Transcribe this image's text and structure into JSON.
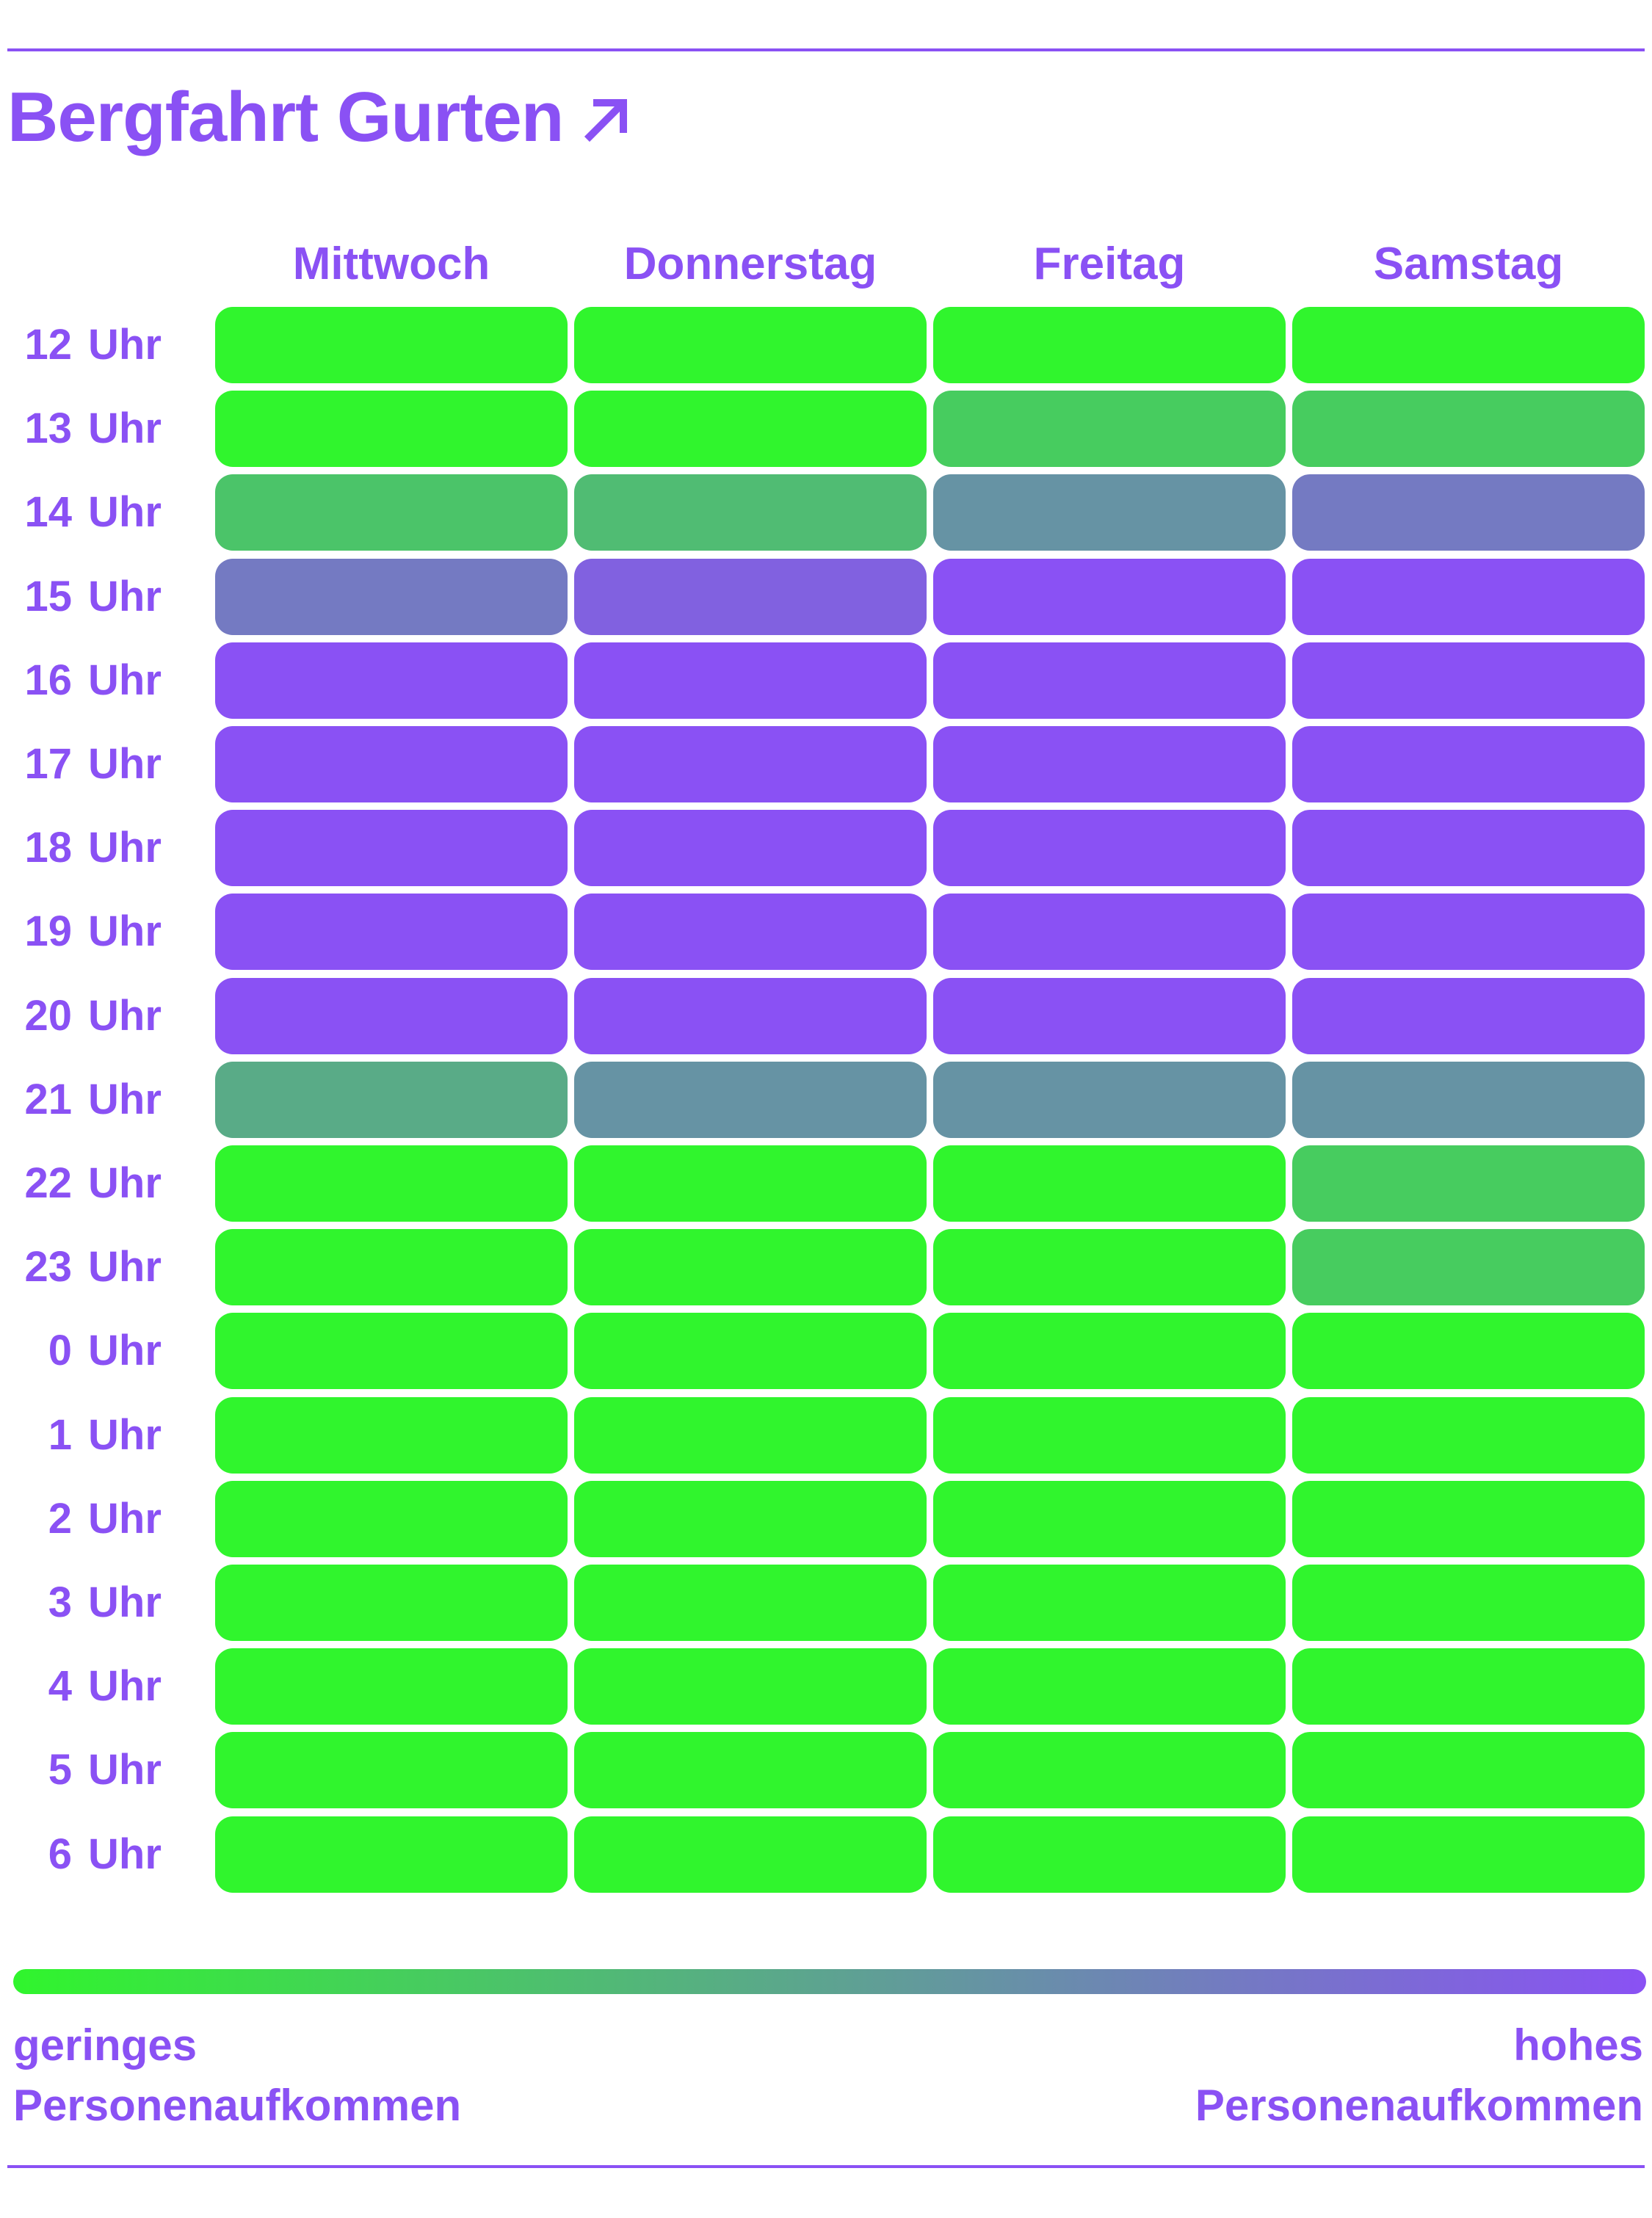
{
  "header": {
    "title": "Bergfahrt Gurten",
    "title_icon": "arrow-up-right-icon"
  },
  "colors": {
    "accent": "#8a51f4",
    "low": "#30f52d",
    "high": "#8a51f4",
    "background": "#ffffff"
  },
  "legend": {
    "low_line1": "geringes",
    "low_line2": "Personenaufkommen",
    "high_line1": "hohes",
    "high_line2": "Personenaufkommen"
  },
  "chart_data": {
    "type": "heatmap",
    "title": "Bergfahrt Gurten",
    "columns": [
      "Mittwoch",
      "Donnerstag",
      "Freitag",
      "Samstag"
    ],
    "rows": [
      {
        "hour": "12",
        "unit": "Uhr"
      },
      {
        "hour": "13",
        "unit": "Uhr"
      },
      {
        "hour": "14",
        "unit": "Uhr"
      },
      {
        "hour": "15",
        "unit": "Uhr"
      },
      {
        "hour": "16",
        "unit": "Uhr"
      },
      {
        "hour": "17",
        "unit": "Uhr"
      },
      {
        "hour": "18",
        "unit": "Uhr"
      },
      {
        "hour": "19",
        "unit": "Uhr"
      },
      {
        "hour": "20",
        "unit": "Uhr"
      },
      {
        "hour": "21",
        "unit": "Uhr"
      },
      {
        "hour": "22",
        "unit": "Uhr"
      },
      {
        "hour": "23",
        "unit": "Uhr"
      },
      {
        "hour": "0",
        "unit": "Uhr"
      },
      {
        "hour": "1",
        "unit": "Uhr"
      },
      {
        "hour": "2",
        "unit": "Uhr"
      },
      {
        "hour": "3",
        "unit": "Uhr"
      },
      {
        "hour": "4",
        "unit": "Uhr"
      },
      {
        "hour": "5",
        "unit": "Uhr"
      },
      {
        "hour": "6",
        "unit": "Uhr"
      }
    ],
    "scale": {
      "min": 0,
      "max": 1,
      "low_label": "geringes Personenaufkommen",
      "high_label": "hohes Personenaufkommen"
    },
    "values": [
      [
        0.0,
        0.0,
        0.0,
        0.0
      ],
      [
        0.0,
        0.0,
        0.25,
        0.25
      ],
      [
        0.3,
        0.35,
        0.6,
        0.75
      ],
      [
        0.75,
        0.9,
        1.0,
        1.0
      ],
      [
        1.0,
        1.0,
        1.0,
        1.0
      ],
      [
        1.0,
        1.0,
        1.0,
        1.0
      ],
      [
        1.0,
        1.0,
        1.0,
        1.0
      ],
      [
        1.0,
        1.0,
        1.0,
        1.0
      ],
      [
        1.0,
        1.0,
        1.0,
        1.0
      ],
      [
        0.45,
        0.6,
        0.6,
        0.6
      ],
      [
        0.0,
        0.0,
        0.0,
        0.25
      ],
      [
        0.0,
        0.0,
        0.0,
        0.25
      ],
      [
        0.0,
        0.0,
        0.0,
        0.0
      ],
      [
        0.0,
        0.0,
        0.0,
        0.0
      ],
      [
        0.0,
        0.0,
        0.0,
        0.0
      ],
      [
        0.0,
        0.0,
        0.0,
        0.0
      ],
      [
        0.0,
        0.0,
        0.0,
        0.0
      ],
      [
        0.0,
        0.0,
        0.0,
        0.0
      ],
      [
        0.0,
        0.0,
        0.0,
        0.0
      ]
    ]
  }
}
